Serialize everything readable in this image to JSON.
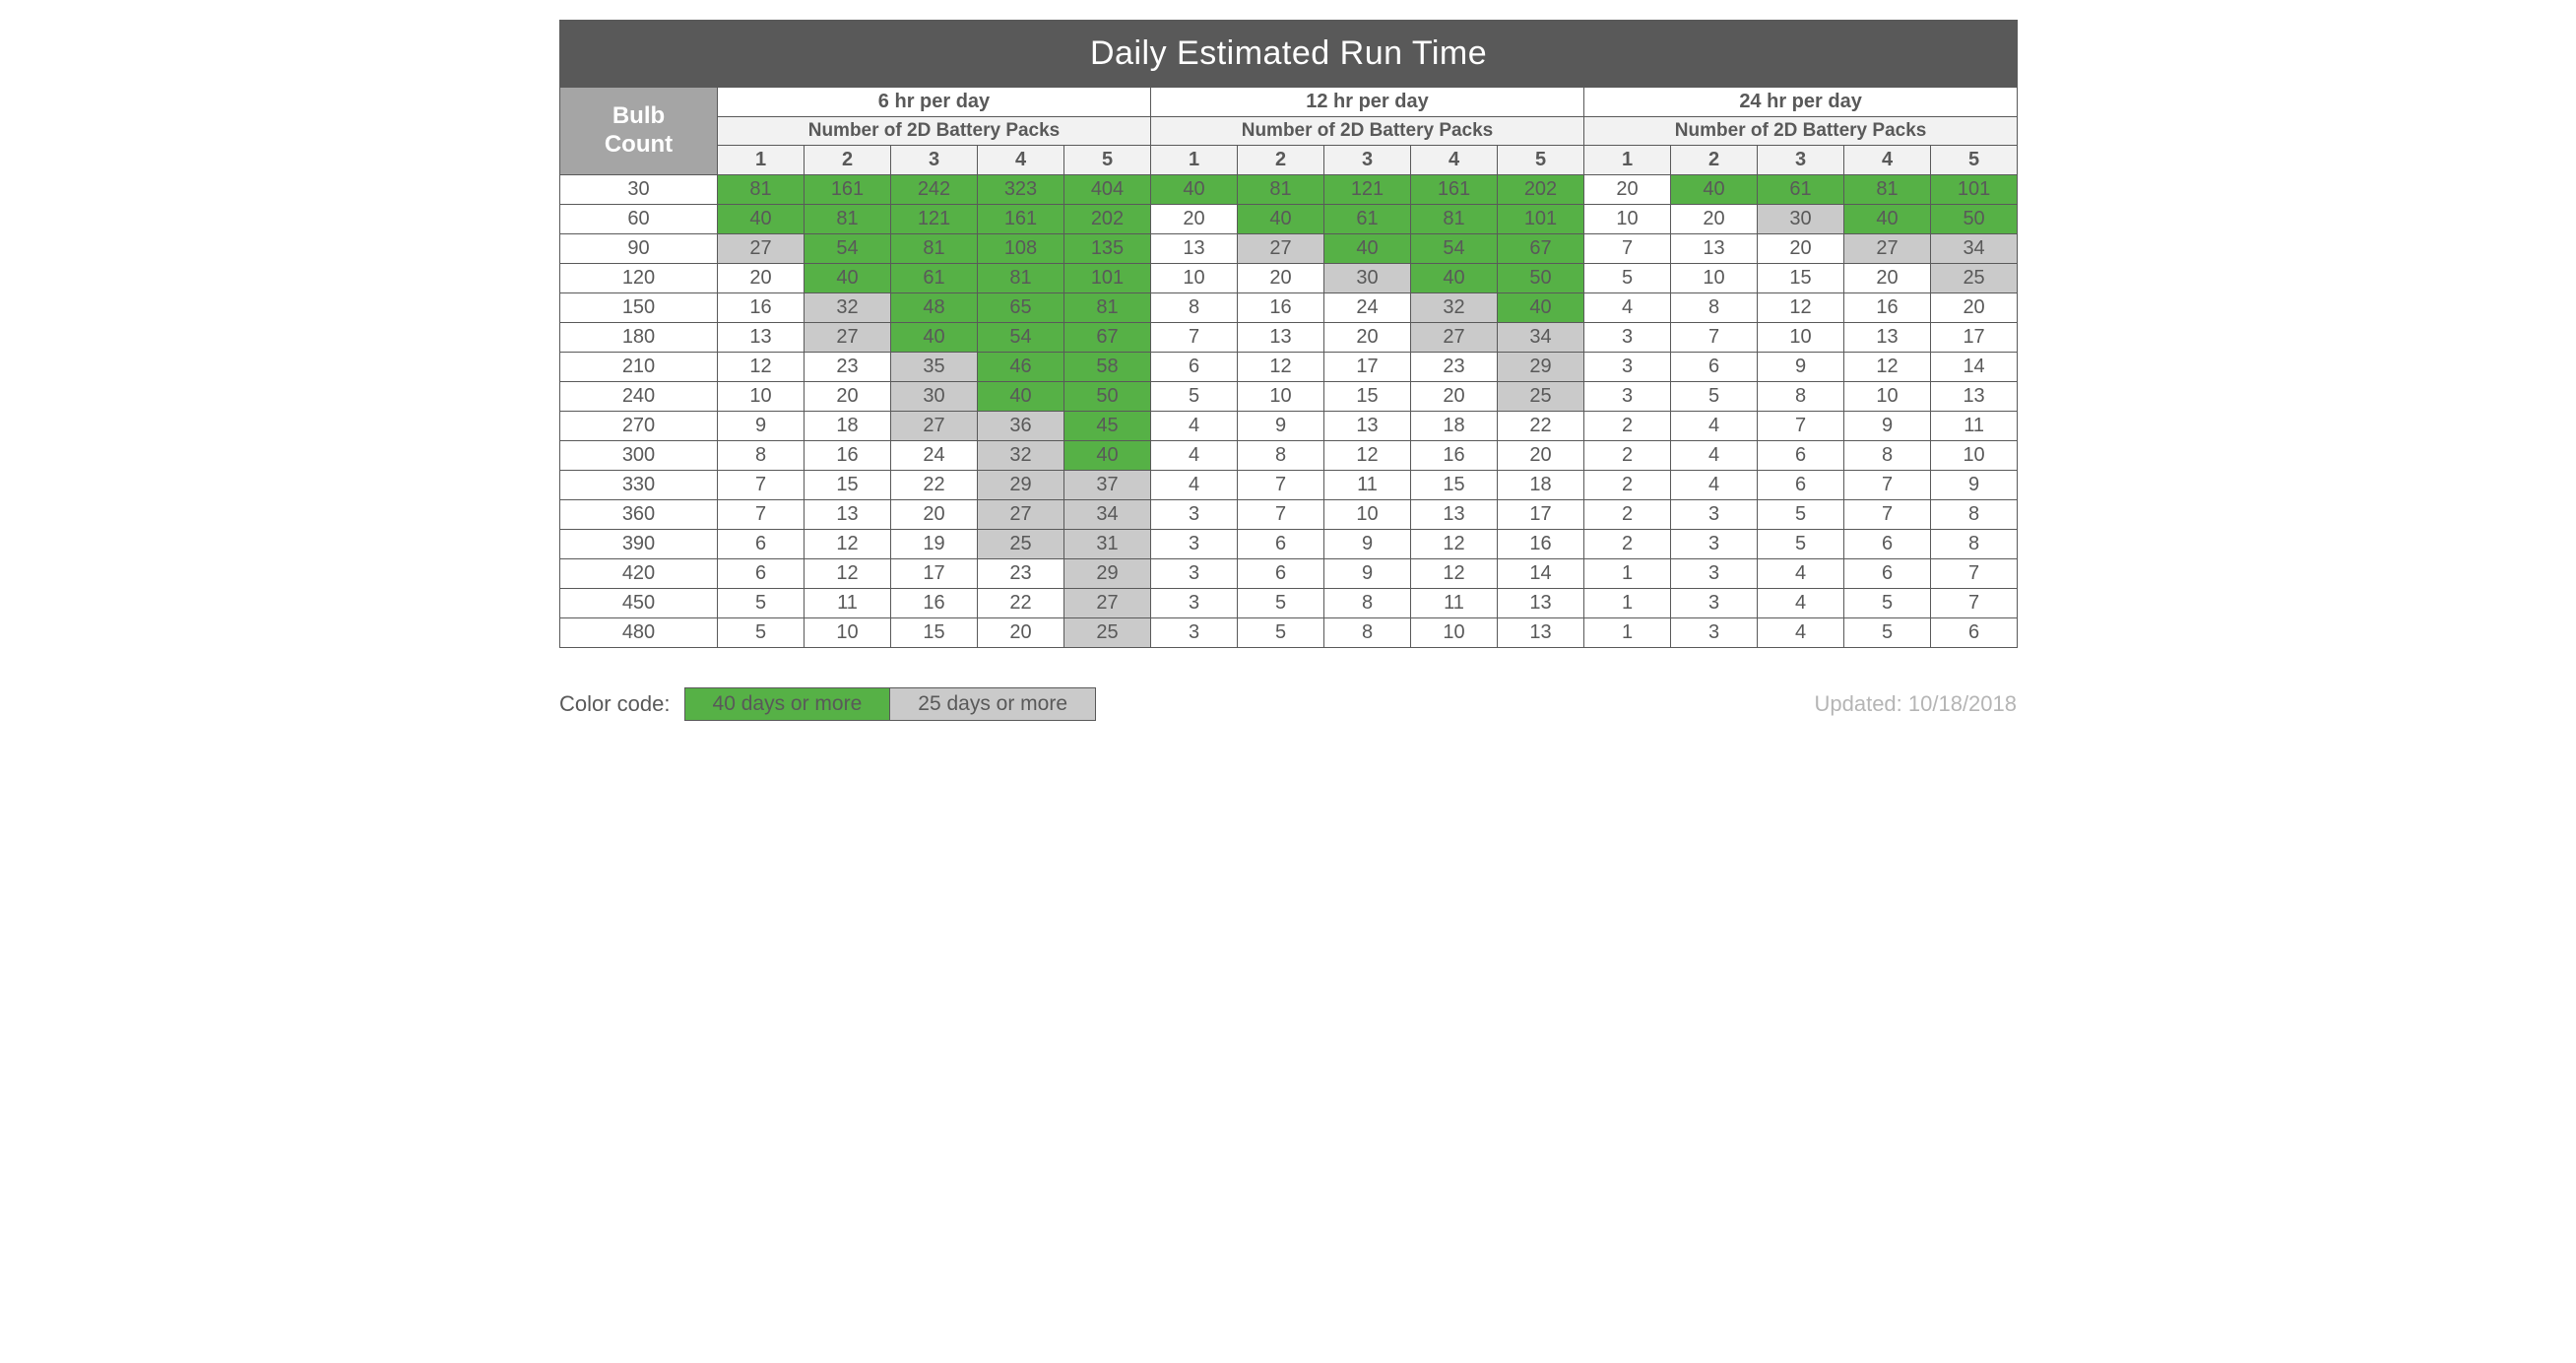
{
  "title": "Daily Estimated Run Time",
  "row_header": "Bulb\nCount",
  "sections": [
    {
      "title": "6 hr per day",
      "sub": "Number of 2D Battery Packs",
      "cols": [
        "1",
        "2",
        "3",
        "4",
        "5"
      ]
    },
    {
      "title": "12 hr per day",
      "sub": "Number of 2D Battery Packs",
      "cols": [
        "1",
        "2",
        "3",
        "4",
        "5"
      ]
    },
    {
      "title": "24 hr per day",
      "sub": "Number of 2D Battery Packs",
      "cols": [
        "1",
        "2",
        "3",
        "4",
        "5"
      ]
    }
  ],
  "bulb_counts": [
    30,
    60,
    90,
    120,
    150,
    180,
    210,
    240,
    270,
    300,
    330,
    360,
    390,
    420,
    450,
    480
  ],
  "data": [
    [
      81,
      161,
      242,
      323,
      404,
      40,
      81,
      121,
      161,
      202,
      20,
      40,
      61,
      81,
      101
    ],
    [
      40,
      81,
      121,
      161,
      202,
      20,
      40,
      61,
      81,
      101,
      10,
      20,
      30,
      40,
      50
    ],
    [
      27,
      54,
      81,
      108,
      135,
      13,
      27,
      40,
      54,
      67,
      7,
      13,
      20,
      27,
      34
    ],
    [
      20,
      40,
      61,
      81,
      101,
      10,
      20,
      30,
      40,
      50,
      5,
      10,
      15,
      20,
      25
    ],
    [
      16,
      32,
      48,
      65,
      81,
      8,
      16,
      24,
      32,
      40,
      4,
      8,
      12,
      16,
      20
    ],
    [
      13,
      27,
      40,
      54,
      67,
      7,
      13,
      20,
      27,
      34,
      3,
      7,
      10,
      13,
      17
    ],
    [
      12,
      23,
      35,
      46,
      58,
      6,
      12,
      17,
      23,
      29,
      3,
      6,
      9,
      12,
      14
    ],
    [
      10,
      20,
      30,
      40,
      50,
      5,
      10,
      15,
      20,
      25,
      3,
      5,
      8,
      10,
      13
    ],
    [
      9,
      18,
      27,
      36,
      45,
      4,
      9,
      13,
      18,
      22,
      2,
      4,
      7,
      9,
      11
    ],
    [
      8,
      16,
      24,
      32,
      40,
      4,
      8,
      12,
      16,
      20,
      2,
      4,
      6,
      8,
      10
    ],
    [
      7,
      15,
      22,
      29,
      37,
      4,
      7,
      11,
      15,
      18,
      2,
      4,
      6,
      7,
      9
    ],
    [
      7,
      13,
      20,
      27,
      34,
      3,
      7,
      10,
      13,
      17,
      2,
      3,
      5,
      7,
      8
    ],
    [
      6,
      12,
      19,
      25,
      31,
      3,
      6,
      9,
      12,
      16,
      2,
      3,
      5,
      6,
      8
    ],
    [
      6,
      12,
      17,
      23,
      29,
      3,
      6,
      9,
      12,
      14,
      1,
      3,
      4,
      6,
      7
    ],
    [
      5,
      11,
      16,
      22,
      27,
      3,
      5,
      8,
      11,
      13,
      1,
      3,
      4,
      5,
      7
    ],
    [
      5,
      10,
      15,
      20,
      25,
      3,
      5,
      8,
      10,
      13,
      1,
      3,
      4,
      5,
      6
    ]
  ],
  "colors": {
    "green_bg": "#56b146",
    "gray_highlight_bg": "#cacaca",
    "white_bg": "#ffffff",
    "title_bg": "#595959",
    "bulb_hdr_bg": "#a5a5a5",
    "subhdr_bg": "#f2f2f2",
    "border": "#595959",
    "text": "#595959",
    "updated_text": "#b5b5b5"
  },
  "legend": {
    "label": "Color code:",
    "items": [
      {
        "text": "40 days or more",
        "threshold": 40,
        "bg_key": "green_bg"
      },
      {
        "text": "25 days or more",
        "threshold": 25,
        "bg_key": "gray_highlight_bg"
      }
    ]
  },
  "updated": "Updated: 10/18/2018",
  "thresholds": {
    "green_min": 40,
    "gray_min": 25
  }
}
